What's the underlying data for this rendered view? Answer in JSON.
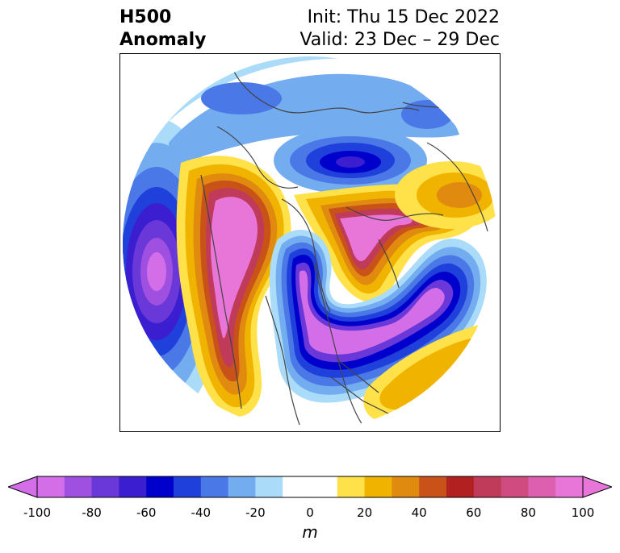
{
  "title": {
    "left_line1": "H500",
    "left_line2": "Anomaly",
    "right_line1": "Init: Thu 15 Dec 2022",
    "right_line2": "Valid: 23 Dec – 29 Dec"
  },
  "colorbar": {
    "unit": "m",
    "ticks": [
      "-100",
      "-80",
      "-60",
      "-40",
      "-20",
      "0",
      "20",
      "40",
      "60",
      "80",
      "100"
    ],
    "levels": [
      -100,
      -90,
      -80,
      -70,
      -60,
      -50,
      -40,
      -30,
      -20,
      -10,
      10,
      20,
      30,
      40,
      50,
      60,
      70,
      80,
      90,
      100
    ],
    "colors": [
      "#d36ee8",
      "#a050e0",
      "#6a38d8",
      "#3a1ed0",
      "#0000cc",
      "#2040dc",
      "#4a78e6",
      "#74acf0",
      "#aadcfa",
      "#ffffff",
      "#ffffff",
      "#ffe14a",
      "#f0b400",
      "#e08a10",
      "#c85218",
      "#b22020",
      "#c03a5a",
      "#d04c80",
      "#dd60b0",
      "#e876d8"
    ],
    "extend": "both"
  },
  "map": {
    "projection": "polar stereographic (North Pole)",
    "features": [
      {
        "name": "negative anomaly Gulf of Alaska / NE Pacific",
        "sign": "negative"
      },
      {
        "name": "negative anomaly northern Siberia",
        "sign": "negative"
      },
      {
        "name": "negative anomaly Arctic west of Greenland",
        "sign": "negative"
      },
      {
        "name": "positive anomaly Greenland",
        "sign": "positive"
      },
      {
        "name": "positive anomaly North Atlantic",
        "sign": "positive"
      },
      {
        "name": "positive anomaly Asia / Japan",
        "sign": "positive"
      },
      {
        "name": "positive anomaly Alaska / Bering",
        "sign": "positive"
      }
    ]
  }
}
